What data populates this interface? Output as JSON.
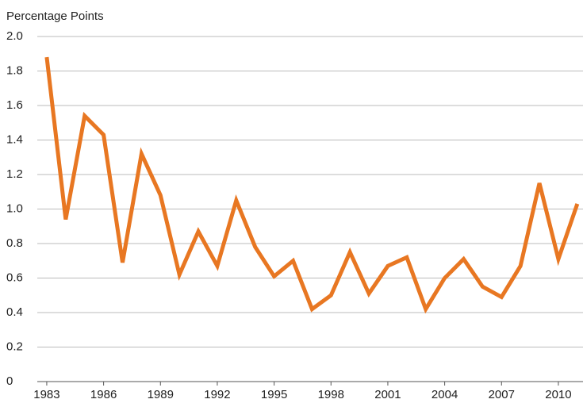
{
  "chart_data": {
    "type": "line",
    "title": "Percentage Points",
    "x": [
      1983,
      1984,
      1985,
      1986,
      1987,
      1988,
      1989,
      1990,
      1991,
      1992,
      1993,
      1994,
      1995,
      1996,
      1997,
      1998,
      1999,
      2000,
      2001,
      2002,
      2003,
      2004,
      2005,
      2006,
      2007,
      2008,
      2009,
      2010,
      2011
    ],
    "series": [
      {
        "name": "Percentage Points",
        "color": "#e87722",
        "values": [
          1.88,
          0.94,
          1.54,
          1.43,
          0.69,
          1.32,
          1.08,
          0.62,
          0.87,
          0.67,
          1.05,
          0.78,
          0.61,
          0.7,
          0.42,
          0.5,
          0.75,
          0.51,
          0.67,
          0.72,
          0.42,
          0.6,
          0.71,
          0.55,
          0.49,
          0.67,
          1.15,
          0.71,
          1.03
        ]
      }
    ],
    "xlim": [
      1982.5,
      2011.3
    ],
    "xticks": [
      1983,
      1986,
      1989,
      1992,
      1995,
      1998,
      2001,
      2004,
      2007,
      2010
    ],
    "ylim": [
      0,
      2
    ],
    "yticks": [
      0,
      0.2,
      0.4,
      0.6,
      0.8,
      {
        "value": 1,
        "label": "1.0"
      },
      1.2,
      1.4,
      1.6,
      1.8,
      {
        "value": 2,
        "label": "2.0"
      }
    ],
    "grid": true
  }
}
